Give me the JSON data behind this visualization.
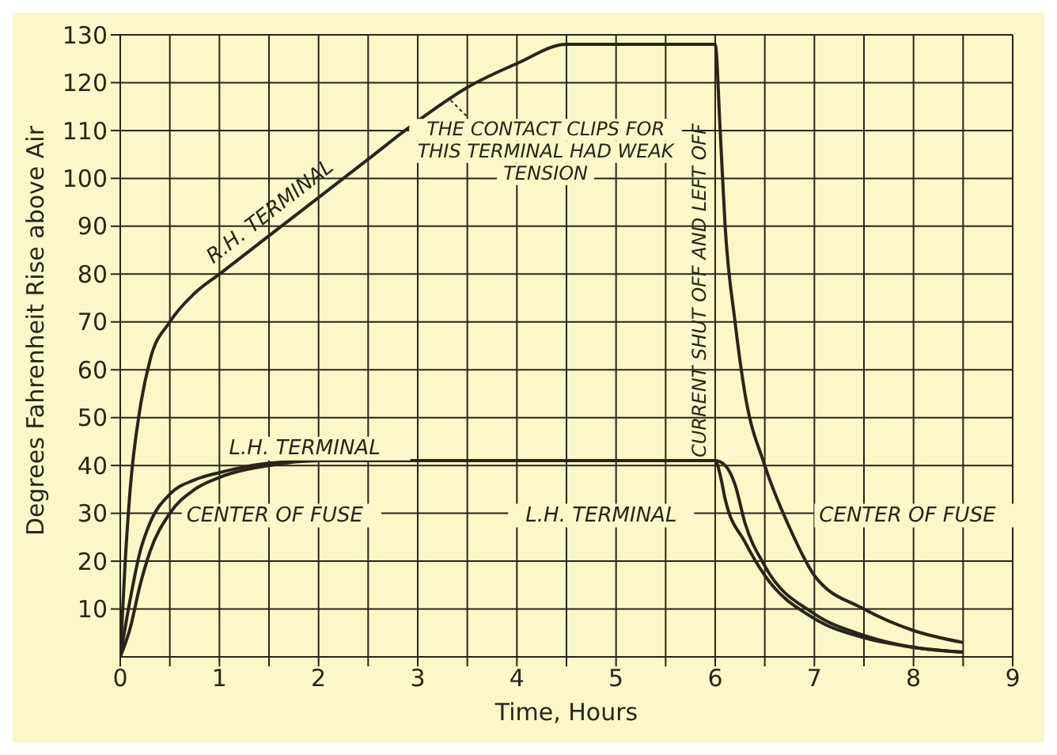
{
  "chart_data": {
    "type": "line",
    "xlabel": "Time, Hours",
    "ylabel": "Degrees Fahrenheit Rise above Air",
    "xlim": [
      0,
      9
    ],
    "xticks": [
      0,
      {
        "value": 0.5,
        "label": null
      },
      1,
      {
        "value": 1.5,
        "label": null
      },
      2,
      {
        "value": 2.5,
        "label": null
      },
      3,
      {
        "value": 3.5,
        "label": null
      },
      4,
      {
        "value": 4.5,
        "label": null
      },
      5,
      {
        "value": 5.5,
        "label": null
      },
      6,
      {
        "value": 6.5,
        "label": null
      },
      7,
      {
        "value": 7.5,
        "label": null
      },
      8,
      {
        "value": 8.5,
        "label": null
      },
      9
    ],
    "ylim": [
      0,
      130
    ],
    "yticks": [
      10,
      20,
      30,
      40,
      50,
      60,
      70,
      80,
      90,
      100,
      110,
      120,
      130
    ],
    "grid": true,
    "legend": false,
    "marker": "none",
    "line_style": "solid",
    "series": [
      {
        "name": "R.H. TERMINAL",
        "color": "#2b2418",
        "x": [
          0,
          0.05,
          0.1,
          0.2,
          0.3,
          0.5,
          0.75,
          1,
          1.5,
          2,
          2.5,
          3,
          3.5,
          4,
          4.5,
          5,
          5.5,
          6,
          6.05,
          6.1,
          6.2,
          6.3,
          6.5,
          6.75,
          7,
          7.5,
          8,
          8.5
        ],
        "values": [
          0,
          20,
          35,
          52,
          62,
          70,
          76,
          80,
          88,
          96,
          104,
          112,
          119,
          124,
          128,
          128,
          128,
          128,
          110,
          90,
          70,
          55,
          40,
          27,
          17,
          10,
          5.5,
          3
        ]
      },
      {
        "name": "L.H. TERMINAL",
        "color": "#2b2418",
        "x": [
          0,
          0.1,
          0.2,
          0.3,
          0.5,
          0.75,
          1,
          1.5,
          2,
          6,
          6.05,
          6.1,
          6.3,
          6.5,
          7,
          7.5,
          8,
          8.5
        ],
        "values": [
          0,
          12,
          22,
          28,
          34,
          37,
          38.5,
          40.5,
          41,
          41,
          38,
          33,
          24,
          17,
          8,
          4,
          2,
          1
        ]
      },
      {
        "name": "CENTER OF FUSE",
        "color": "#2b2418",
        "x": [
          0,
          0.1,
          0.2,
          0.3,
          0.5,
          0.75,
          1,
          1.5,
          2,
          6,
          6.1,
          6.2,
          6.3,
          6.5,
          7,
          7.5,
          8,
          8.5
        ],
        "values": [
          0,
          6,
          15,
          22,
          30,
          35,
          37.5,
          40,
          41,
          41,
          40,
          36,
          28,
          19,
          9,
          4.5,
          2,
          1
        ]
      }
    ],
    "annotations": [
      {
        "text": "THE CONTACT CLIPS FOR THIS TERMINAL HAD WEAK TENSION",
        "x": 3.3,
        "y": 117
      },
      "CURRENT SHUT OFF AND LEFT OFF",
      "L.H. TERMINAL",
      "CENTER OF FUSE"
    ]
  }
}
